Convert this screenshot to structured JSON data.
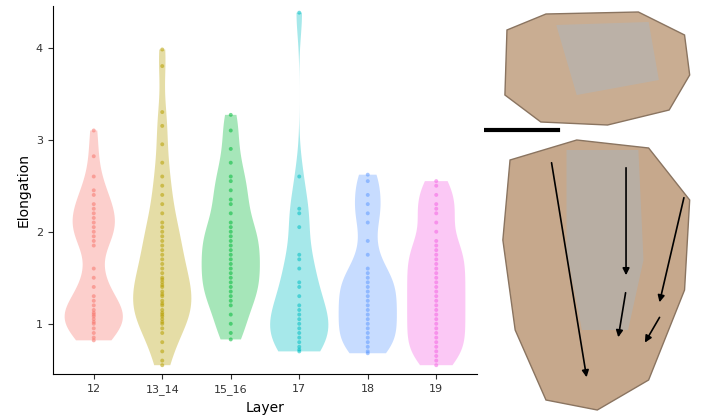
{
  "chart_data": {
    "type": "violin",
    "x_label": "Layer",
    "y_label": "Elongation",
    "categories": [
      "12",
      "13_14",
      "15_16",
      "17",
      "18",
      "19"
    ],
    "colors": [
      "#F8766D",
      "#B79F00",
      "#00BA38",
      "#00BFC4",
      "#619CFF",
      "#F564E3"
    ],
    "values": [
      [
        3.1,
        2.82,
        2.6,
        2.45,
        2.4,
        2.3,
        2.25,
        2.2,
        2.15,
        2.1,
        2.05,
        2.0,
        1.95,
        1.9,
        1.85,
        1.6,
        1.5,
        1.4,
        1.3,
        1.25,
        1.2,
        1.15,
        1.12,
        1.1,
        1.08,
        1.05,
        1.02,
        1.0,
        0.95,
        0.9,
        0.85,
        0.82
      ],
      [
        3.98,
        3.8,
        3.3,
        3.15,
        2.95,
        2.75,
        2.6,
        2.5,
        2.4,
        2.3,
        2.2,
        2.1,
        2.05,
        2.0,
        1.95,
        1.9,
        1.85,
        1.8,
        1.75,
        1.7,
        1.65,
        1.6,
        1.55,
        1.5,
        1.45,
        1.4,
        1.35,
        1.3,
        1.25,
        1.2,
        1.15,
        1.1,
        1.05,
        1.0,
        0.95,
        0.9,
        0.8,
        0.7,
        0.6,
        0.55,
        1.48,
        1.42,
        1.32,
        1.22,
        1.12,
        1.08,
        1.02
      ],
      [
        3.27,
        3.1,
        2.9,
        2.75,
        2.6,
        2.55,
        2.45,
        2.35,
        2.3,
        2.2,
        2.1,
        2.05,
        2.0,
        1.95,
        1.9,
        1.85,
        1.8,
        1.75,
        1.7,
        1.65,
        1.6,
        1.55,
        1.5,
        1.45,
        1.4,
        1.35,
        1.3,
        1.25,
        1.2,
        1.1,
        1.0,
        0.9,
        0.83
      ],
      [
        4.38,
        2.6,
        2.25,
        2.2,
        2.05,
        1.75,
        1.7,
        1.6,
        1.45,
        1.4,
        1.3,
        1.2,
        1.15,
        1.1,
        1.05,
        1.0,
        0.95,
        0.9,
        0.85,
        0.8,
        0.75,
        0.72,
        0.7
      ],
      [
        2.62,
        2.55,
        2.4,
        2.3,
        2.2,
        2.1,
        1.9,
        1.75,
        1.6,
        1.55,
        1.5,
        1.45,
        1.4,
        1.35,
        1.3,
        1.25,
        1.2,
        1.15,
        1.1,
        1.05,
        1.0,
        0.95,
        0.9,
        0.85,
        0.8,
        0.75,
        0.7,
        0.68
      ],
      [
        2.55,
        2.5,
        2.4,
        2.3,
        2.25,
        2.2,
        2.1,
        2.0,
        1.9,
        1.85,
        1.8,
        1.75,
        1.7,
        1.65,
        1.6,
        1.55,
        1.5,
        1.45,
        1.4,
        1.35,
        1.3,
        1.25,
        1.2,
        1.15,
        1.1,
        1.05,
        1.0,
        0.95,
        0.9,
        0.85,
        0.8,
        0.75,
        0.7,
        0.65,
        0.6,
        0.55
      ]
    ],
    "ylim": [
      0.45,
      4.45
    ],
    "yticks": [
      1,
      2,
      3,
      4
    ]
  }
}
